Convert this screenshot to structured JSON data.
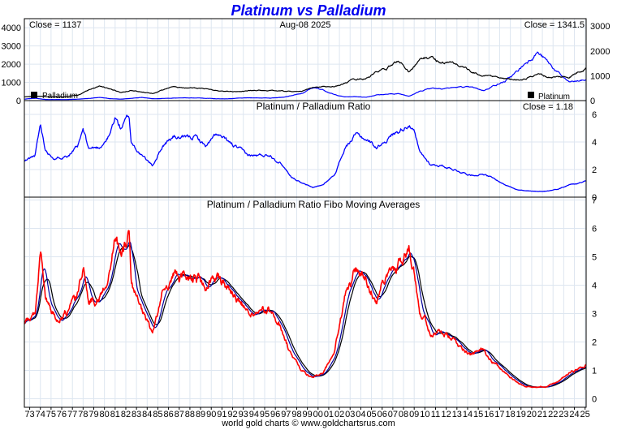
{
  "title": "Platinum vs Palladium",
  "title_color": "#0000ee",
  "footer": "world gold charts © www.goldchartsrus.com",
  "colors": {
    "platinum": "#000000",
    "palladium": "#0000ff",
    "ratio": "#0000ff",
    "ratio_raw": "#ff0000",
    "ma_short": "#000099",
    "ma_long": "#000000",
    "grid": "#dde6f0"
  },
  "chart_data": [
    {
      "type": "line",
      "panel": "price",
      "date_label": "Aug-08  2025",
      "left_close_label": "Close = 1137",
      "right_close_label": "Close = 1341.5",
      "x_tick_labels": [
        "73",
        "74",
        "75",
        "76",
        "77",
        "78",
        "79",
        "80",
        "81",
        "82",
        "83",
        "84",
        "85",
        "86",
        "87",
        "88",
        "89",
        "90",
        "91",
        "92",
        "93",
        "94",
        "95",
        "96",
        "97",
        "98",
        "99",
        "00",
        "01",
        "02",
        "03",
        "04",
        "05",
        "06",
        "07",
        "08",
        "09",
        "10",
        "11",
        "12",
        "13",
        "14",
        "15",
        "16",
        "17",
        "18",
        "19",
        "20",
        "21",
        "22",
        "23",
        "24",
        "25"
      ],
      "ylim_left": [
        0,
        4500
      ],
      "left_ticks": [
        0,
        1000,
        2000,
        3000,
        4000
      ],
      "ylim_right": [
        0,
        3300
      ],
      "right_ticks": [
        0,
        1000,
        2000,
        3000
      ],
      "legend": [
        {
          "name": "Palladium",
          "position": "bottom-left"
        },
        {
          "name": "Platinum",
          "position": "bottom-right"
        }
      ],
      "series": [
        {
          "name": "Platinum",
          "axis": "right",
          "x": [
            1973,
            1974,
            1975,
            1976,
            1977,
            1978,
            1979,
            1980,
            1981,
            1982,
            1983,
            1984,
            1985,
            1986,
            1987,
            1988,
            1989,
            1990,
            1991,
            1992,
            1993,
            1994,
            1995,
            1996,
            1997,
            1998,
            1999,
            2000,
            2001,
            2002,
            2003,
            2004,
            2005,
            2006,
            2007,
            2008,
            2009,
            2010,
            2011,
            2012,
            2013,
            2014,
            2015,
            2016,
            2017,
            2018,
            2019,
            2020,
            2021,
            2022,
            2023,
            2024,
            2025.6
          ],
          "values": [
            150,
            180,
            160,
            150,
            160,
            220,
            440,
            600,
            470,
            330,
            420,
            340,
            300,
            440,
            560,
            520,
            500,
            470,
            400,
            360,
            370,
            400,
            420,
            400,
            390,
            370,
            380,
            510,
            560,
            540,
            700,
            850,
            900,
            1150,
            1300,
            1600,
            1200,
            1650,
            1750,
            1550,
            1500,
            1400,
            1100,
            1000,
            950,
            880,
            850,
            880,
            1100,
            950,
            950,
            950,
            1341.5
          ]
        },
        {
          "name": "Palladium",
          "axis": "left",
          "x": [
            1973,
            1974,
            1975,
            1976,
            1977,
            1978,
            1979,
            1980,
            1981,
            1982,
            1983,
            1984,
            1985,
            1986,
            1987,
            1988,
            1989,
            1990,
            1991,
            1992,
            1993,
            1994,
            1995,
            1996,
            1997,
            1998,
            1999,
            2000,
            2001,
            2002,
            2003,
            2004,
            2005,
            2006,
            2007,
            2008,
            2009,
            2010,
            2011,
            2012,
            2013,
            2014,
            2015,
            2016,
            2017,
            2018,
            2019,
            2020,
            2021,
            2022,
            2023,
            2024,
            2025.6
          ],
          "values": [
            80,
            130,
            60,
            60,
            60,
            80,
            120,
            170,
            110,
            80,
            120,
            180,
            110,
            120,
            140,
            140,
            150,
            130,
            100,
            100,
            130,
            150,
            150,
            140,
            180,
            280,
            380,
            700,
            600,
            330,
            200,
            220,
            190,
            320,
            350,
            380,
            260,
            500,
            700,
            680,
            710,
            750,
            700,
            550,
            850,
            1050,
            1500,
            2100,
            2700,
            2100,
            1500,
            1000,
            1137
          ]
        }
      ]
    },
    {
      "type": "line",
      "panel": "ratio",
      "title": "Platinum / Palladium Ratio",
      "close_label": "Close = 1.18",
      "ylim": [
        0,
        7
      ],
      "ticks": [
        0,
        2,
        4,
        6
      ],
      "series": [
        {
          "name": "Platinum / Palladium Ratio",
          "x": [
            1973,
            1974,
            1974.5,
            1975,
            1976,
            1977,
            1978,
            1978.5,
            1979,
            1980,
            1981,
            1981.5,
            1982,
            1982.8,
            1983,
            1984,
            1985,
            1986,
            1987,
            1988,
            1989,
            1990,
            1991,
            1992,
            1993,
            1994,
            1995,
            1996,
            1997,
            1998,
            1999,
            2000,
            2001,
            2002,
            2003,
            2004,
            2005,
            2006,
            2007,
            2008,
            2009,
            2009.5,
            2010,
            2011,
            2012,
            2013,
            2014,
            2015,
            2016,
            2017,
            2018,
            2019,
            2020,
            2021,
            2022,
            2023,
            2024,
            2025.6
          ],
          "values": [
            2.6,
            3.0,
            5.2,
            3.4,
            2.8,
            3.1,
            3.6,
            4.8,
            3.5,
            3.6,
            4.5,
            5.8,
            5.0,
            5.9,
            4.0,
            3.0,
            2.3,
            3.8,
            4.4,
            4.2,
            4.4,
            3.7,
            4.5,
            4.0,
            3.5,
            3.0,
            3.0,
            3.1,
            2.5,
            1.5,
            1.0,
            0.7,
            0.9,
            1.6,
            3.5,
            4.5,
            4.2,
            3.6,
            4.3,
            4.8,
            5.4,
            4.7,
            3.2,
            2.4,
            2.3,
            2.1,
            1.8,
            1.6,
            1.7,
            1.3,
            0.9,
            0.6,
            0.45,
            0.4,
            0.45,
            0.6,
            0.9,
            1.18
          ]
        }
      ]
    },
    {
      "type": "line",
      "panel": "fibo",
      "title": "Platinum / Palladium Ratio Fibo Moving Averages",
      "ylim": [
        -0.3,
        7.1
      ],
      "ticks": [
        0,
        1,
        2,
        3,
        4,
        5,
        6,
        7
      ],
      "series": [
        {
          "name": "Ratio",
          "x": [
            1973,
            1974,
            1974.5,
            1975,
            1976,
            1977,
            1978,
            1978.5,
            1979,
            1980,
            1981,
            1981.5,
            1982,
            1982.8,
            1983,
            1984,
            1985,
            1986,
            1987,
            1988,
            1989,
            1990,
            1991,
            1992,
            1993,
            1994,
            1995,
            1996,
            1997,
            1998,
            1999,
            2000,
            2001,
            2002,
            2003,
            2004,
            2005,
            2006,
            2007,
            2008,
            2009,
            2009.5,
            2010,
            2011,
            2012,
            2013,
            2014,
            2015,
            2016,
            2017,
            2018,
            2019,
            2020,
            2021,
            2022,
            2023,
            2024,
            2025.6
          ],
          "values": [
            2.6,
            3.0,
            5.2,
            3.4,
            2.8,
            3.1,
            3.6,
            4.8,
            3.5,
            3.6,
            4.5,
            5.8,
            5.0,
            5.9,
            4.0,
            3.0,
            2.3,
            3.8,
            4.4,
            4.2,
            4.4,
            3.7,
            4.5,
            4.0,
            3.5,
            3.0,
            3.0,
            3.1,
            2.5,
            1.5,
            1.0,
            0.7,
            0.9,
            1.6,
            3.5,
            4.5,
            4.2,
            3.6,
            4.3,
            4.8,
            5.4,
            4.7,
            3.2,
            2.4,
            2.3,
            2.1,
            1.8,
            1.6,
            1.7,
            1.3,
            0.9,
            0.6,
            0.45,
            0.4,
            0.45,
            0.6,
            0.9,
            1.18
          ]
        }
      ]
    }
  ]
}
